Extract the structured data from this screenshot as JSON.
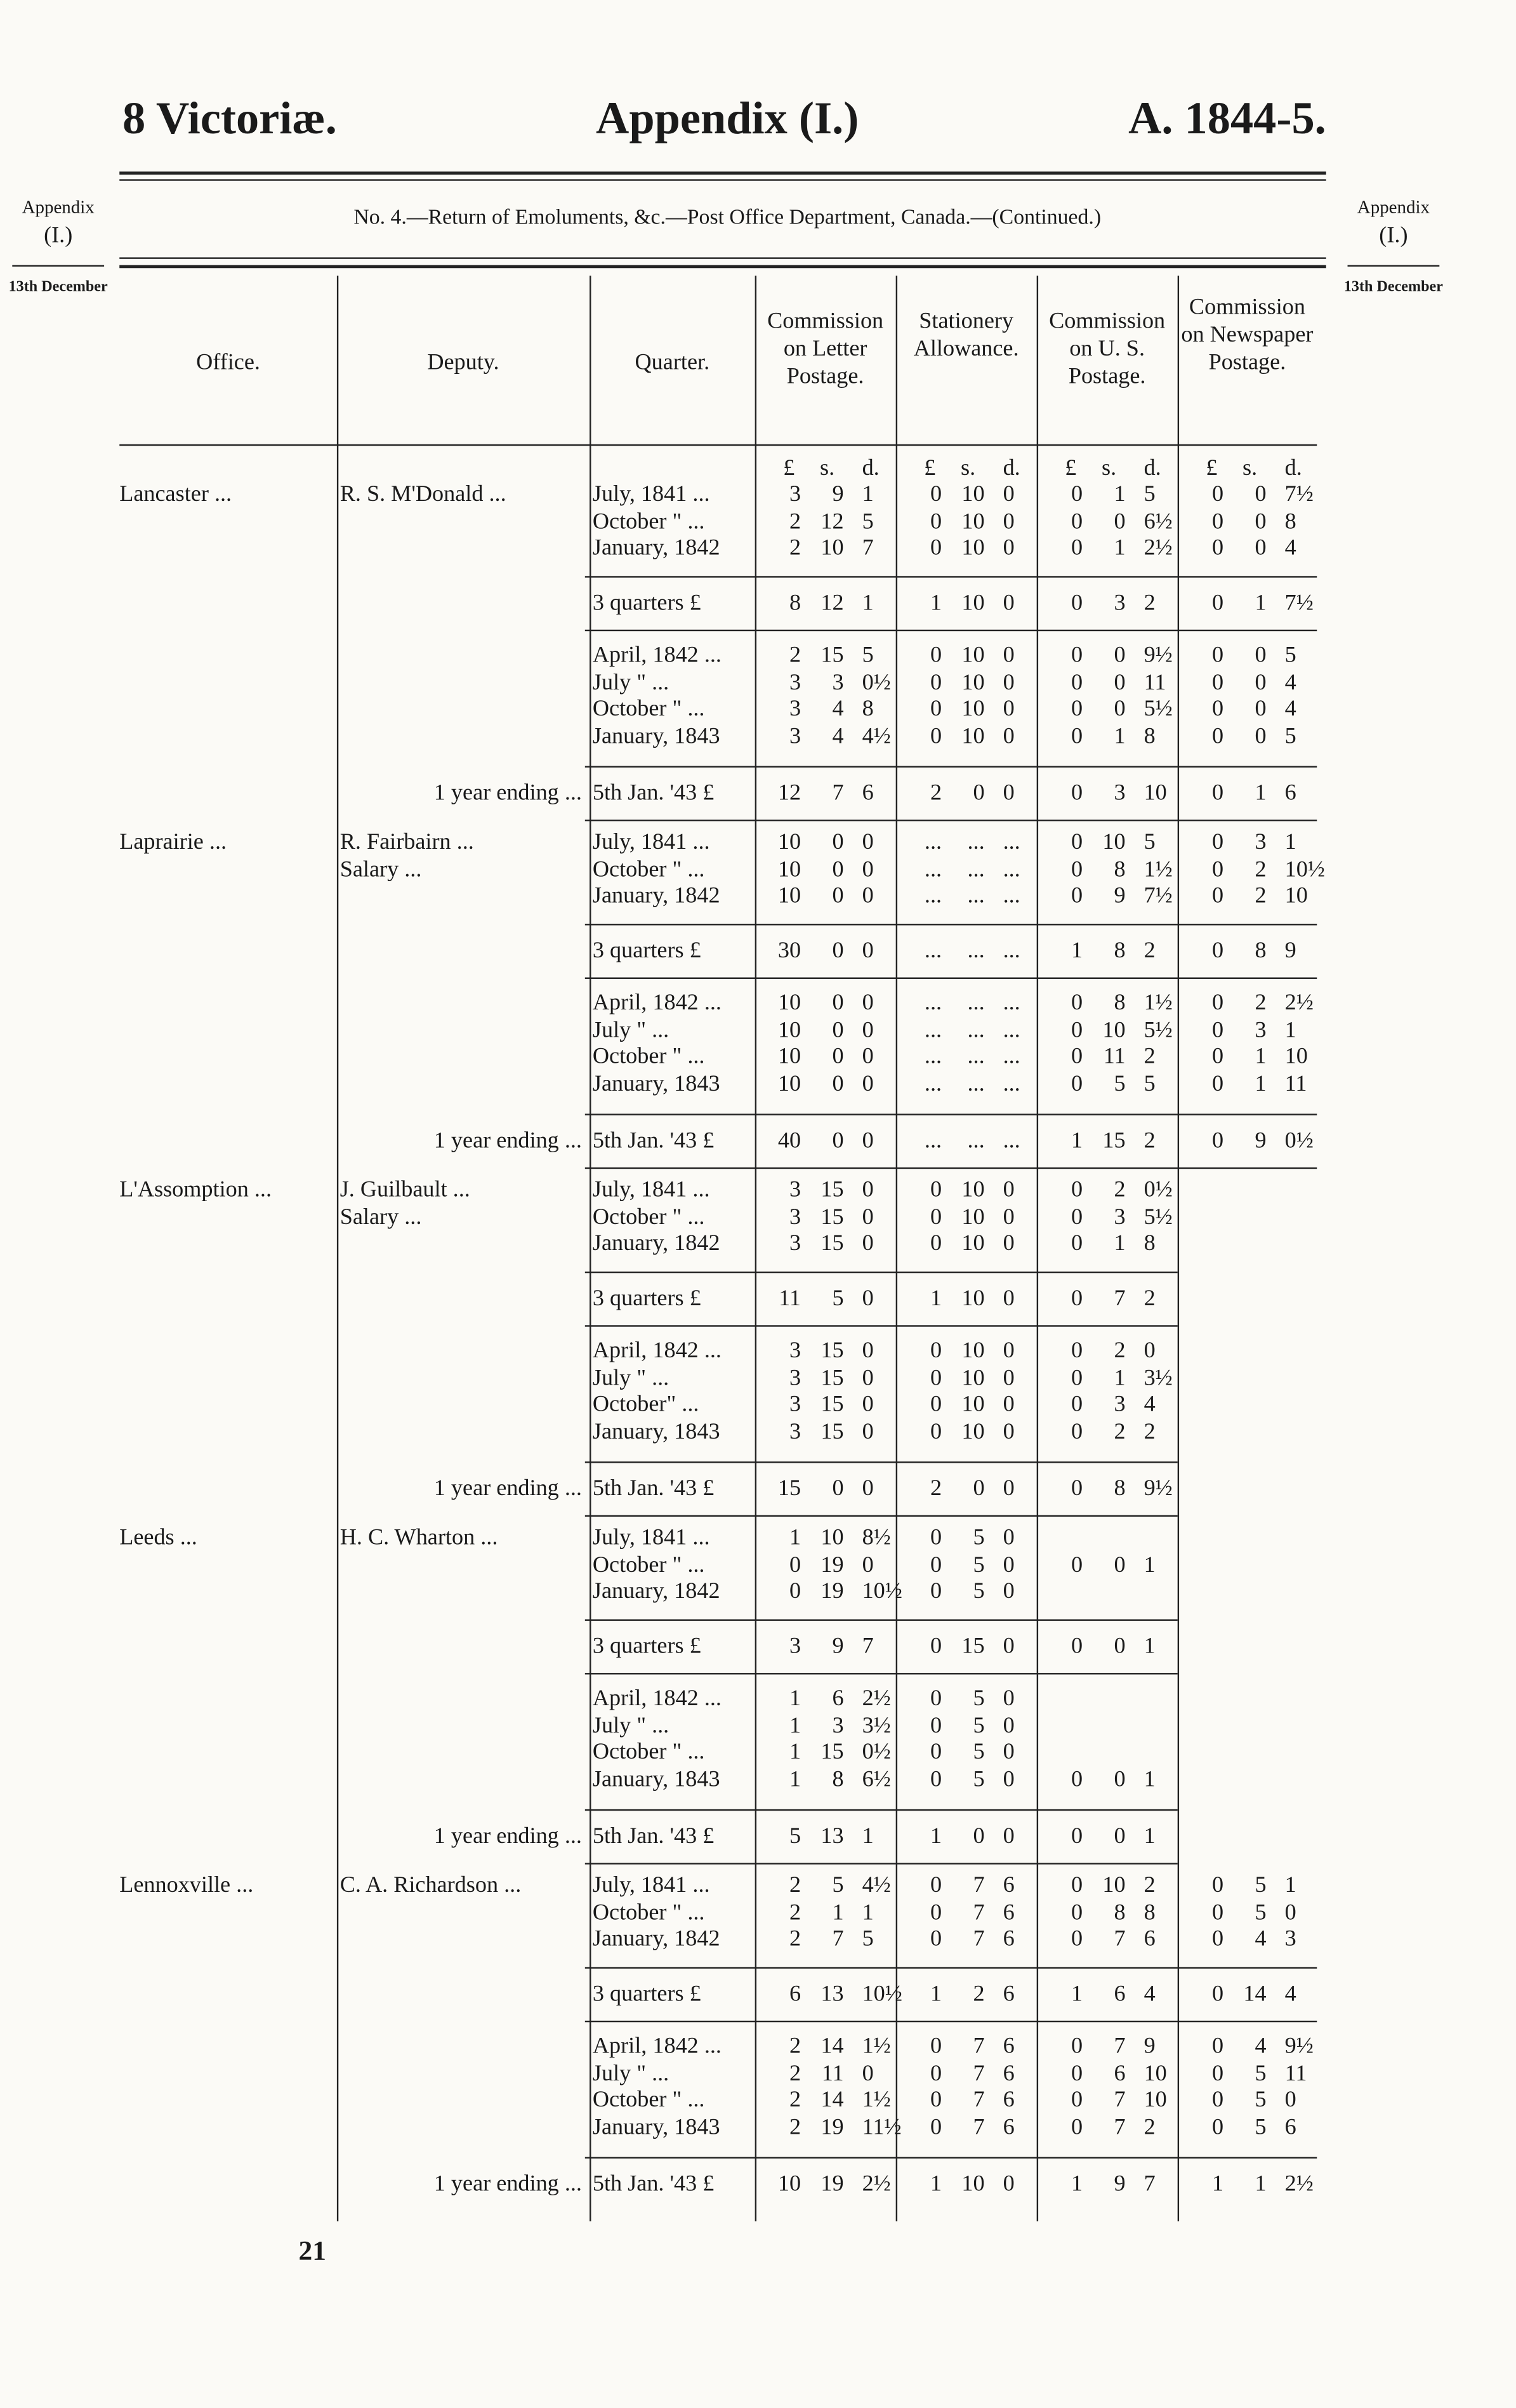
{
  "header": {
    "left": "8 Victoriæ.",
    "center": "Appendix (I.)",
    "right": "A. 1844-5."
  },
  "subtitle": "No. 4.—Return of Emoluments, &c.—Post Office Department, Canada.—(Continued.)",
  "margin": {
    "label": "Appendix",
    "number": "(I.)",
    "date": "13th December"
  },
  "columns": [
    "Office.",
    "Deputy.",
    "Quarter.",
    "Commission on Letter Postage.",
    "Stationery Allowance.",
    "Commission on U. S. Postage.",
    "Commission on Newspaper Postage."
  ],
  "units": [
    "£",
    "s.",
    "d."
  ],
  "offices": [
    {
      "office": "Lancaster ...",
      "deputy": [
        "R. S. M'Donald ..."
      ],
      "quarters_1": [
        [
          "July, 1841 ...",
          "3",
          "9",
          "1",
          "0",
          "10",
          "0",
          "0",
          "1",
          "5",
          "0",
          "0",
          "7½"
        ],
        [
          "October \" ...",
          "2",
          "12",
          "5",
          "0",
          "10",
          "0",
          "0",
          "0",
          "6½",
          "0",
          "0",
          "8"
        ],
        [
          "January, 1842",
          "2",
          "10",
          "7",
          "0",
          "10",
          "0",
          "0",
          "1",
          "2½",
          "0",
          "0",
          "4"
        ]
      ],
      "total_1": [
        "3 quarters £",
        "8",
        "12",
        "1",
        "1",
        "10",
        "0",
        "0",
        "3",
        "2",
        "0",
        "1",
        "7½"
      ],
      "quarters_2": [
        [
          "April, 1842 ...",
          "2",
          "15",
          "5",
          "0",
          "10",
          "0",
          "0",
          "0",
          "9½",
          "0",
          "0",
          "5"
        ],
        [
          "July \" ...",
          "3",
          "3",
          "0½",
          "0",
          "10",
          "0",
          "0",
          "0",
          "11",
          "0",
          "0",
          "4"
        ],
        [
          "October \" ...",
          "3",
          "4",
          "8",
          "0",
          "10",
          "0",
          "0",
          "0",
          "5½",
          "0",
          "0",
          "4"
        ],
        [
          "January, 1843",
          "3",
          "4",
          "4½",
          "0",
          "10",
          "0",
          "0",
          "1",
          "8",
          "0",
          "0",
          "5"
        ]
      ],
      "ending": "1 year ending ...",
      "total_2": [
        "5th Jan. '43 £",
        "12",
        "7",
        "6",
        "2",
        "0",
        "0",
        "0",
        "3",
        "10",
        "0",
        "1",
        "6"
      ]
    },
    {
      "office": "Laprairie ...",
      "deputy": [
        "R. Fairbairn ...",
        "Salary ..."
      ],
      "quarters_1": [
        [
          "July, 1841 ...",
          "10",
          "0",
          "0",
          "...",
          "...",
          "...",
          "0",
          "10",
          "5",
          "0",
          "3",
          "1"
        ],
        [
          "October \" ...",
          "10",
          "0",
          "0",
          "...",
          "...",
          "...",
          "0",
          "8",
          "1½",
          "0",
          "2",
          "10½"
        ],
        [
          "January, 1842",
          "10",
          "0",
          "0",
          "...",
          "...",
          "...",
          "0",
          "9",
          "7½",
          "0",
          "2",
          "10"
        ]
      ],
      "total_1": [
        "3 quarters £",
        "30",
        "0",
        "0",
        "...",
        "...",
        "...",
        "1",
        "8",
        "2",
        "0",
        "8",
        "9"
      ],
      "quarters_2": [
        [
          "April, 1842 ...",
          "10",
          "0",
          "0",
          "...",
          "...",
          "...",
          "0",
          "8",
          "1½",
          "0",
          "2",
          "2½"
        ],
        [
          "July \" ...",
          "10",
          "0",
          "0",
          "...",
          "...",
          "...",
          "0",
          "10",
          "5½",
          "0",
          "3",
          "1"
        ],
        [
          "October \" ...",
          "10",
          "0",
          "0",
          "...",
          "...",
          "...",
          "0",
          "11",
          "2",
          "0",
          "1",
          "10"
        ],
        [
          "January, 1843",
          "10",
          "0",
          "0",
          "...",
          "...",
          "...",
          "0",
          "5",
          "5",
          "0",
          "1",
          "11"
        ]
      ],
      "ending": "1 year ending ...",
      "total_2": [
        "5th Jan. '43 £",
        "40",
        "0",
        "0",
        "...",
        "...",
        "...",
        "1",
        "15",
        "2",
        "0",
        "9",
        "0½"
      ]
    },
    {
      "office": "L'Assomption ...",
      "deputy": [
        "J. Guilbault ...",
        "Salary ..."
      ],
      "quarters_1": [
        [
          "July, 1841 ...",
          "3",
          "15",
          "0",
          "0",
          "10",
          "0",
          "0",
          "2",
          "0½",
          null,
          null,
          null
        ],
        [
          "October \" ...",
          "3",
          "15",
          "0",
          "0",
          "10",
          "0",
          "0",
          "3",
          "5½",
          null,
          null,
          null
        ],
        [
          "January, 1842",
          "3",
          "15",
          "0",
          "0",
          "10",
          "0",
          "0",
          "1",
          "8",
          null,
          null,
          null
        ]
      ],
      "total_1": [
        "3 quarters £",
        "11",
        "5",
        "0",
        "1",
        "10",
        "0",
        "0",
        "7",
        "2",
        null,
        null,
        null
      ],
      "quarters_2": [
        [
          "April, 1842 ...",
          "3",
          "15",
          "0",
          "0",
          "10",
          "0",
          "0",
          "2",
          "0",
          null,
          null,
          null
        ],
        [
          "July \" ...",
          "3",
          "15",
          "0",
          "0",
          "10",
          "0",
          "0",
          "1",
          "3½",
          null,
          null,
          null
        ],
        [
          "October\" ...",
          "3",
          "15",
          "0",
          "0",
          "10",
          "0",
          "0",
          "3",
          "4",
          null,
          null,
          null
        ],
        [
          "January, 1843",
          "3",
          "15",
          "0",
          "0",
          "10",
          "0",
          "0",
          "2",
          "2",
          null,
          null,
          null
        ]
      ],
      "ending": "1 year ending ...",
      "total_2": [
        "5th Jan. '43 £",
        "15",
        "0",
        "0",
        "2",
        "0",
        "0",
        "0",
        "8",
        "9½",
        null,
        null,
        null
      ]
    },
    {
      "office": "Leeds ...",
      "deputy": [
        "H. C. Wharton ..."
      ],
      "quarters_1": [
        [
          "July, 1841 ...",
          "1",
          "10",
          "8½",
          "0",
          "5",
          "0",
          null,
          null,
          null,
          null,
          null,
          null
        ],
        [
          "October \" ...",
          "0",
          "19",
          "0",
          "0",
          "5",
          "0",
          "0",
          "0",
          "1",
          null,
          null,
          null
        ],
        [
          "January, 1842",
          "0",
          "19",
          "10½",
          "0",
          "5",
          "0",
          null,
          null,
          null,
          null,
          null,
          null
        ]
      ],
      "total_1": [
        "3 quarters £",
        "3",
        "9",
        "7",
        "0",
        "15",
        "0",
        "0",
        "0",
        "1",
        null,
        null,
        null
      ],
      "quarters_2": [
        [
          "April, 1842 ...",
          "1",
          "6",
          "2½",
          "0",
          "5",
          "0",
          null,
          null,
          null,
          null,
          null,
          null
        ],
        [
          "July \" ...",
          "1",
          "3",
          "3½",
          "0",
          "5",
          "0",
          null,
          null,
          null,
          null,
          null,
          null
        ],
        [
          "October \" ...",
          "1",
          "15",
          "0½",
          "0",
          "5",
          "0",
          null,
          null,
          null,
          null,
          null,
          null
        ],
        [
          "January, 1843",
          "1",
          "8",
          "6½",
          "0",
          "5",
          "0",
          "0",
          "0",
          "1",
          null,
          null,
          null
        ]
      ],
      "ending": "1 year ending ...",
      "total_2": [
        "5th Jan. '43 £",
        "5",
        "13",
        "1",
        "1",
        "0",
        "0",
        "0",
        "0",
        "1",
        null,
        null,
        null
      ]
    },
    {
      "office": "Lennoxville ...",
      "deputy": [
        "C. A. Richardson ..."
      ],
      "quarters_1": [
        [
          "July, 1841 ...",
          "2",
          "5",
          "4½",
          "0",
          "7",
          "6",
          "0",
          "10",
          "2",
          "0",
          "5",
          "1"
        ],
        [
          "October \" ...",
          "2",
          "1",
          "1",
          "0",
          "7",
          "6",
          "0",
          "8",
          "8",
          "0",
          "5",
          "0"
        ],
        [
          "January, 1842",
          "2",
          "7",
          "5",
          "0",
          "7",
          "6",
          "0",
          "7",
          "6",
          "0",
          "4",
          "3"
        ]
      ],
      "total_1": [
        "3 quarters £",
        "6",
        "13",
        "10½",
        "1",
        "2",
        "6",
        "1",
        "6",
        "4",
        "0",
        "14",
        "4"
      ],
      "quarters_2": [
        [
          "April, 1842 ...",
          "2",
          "14",
          "1½",
          "0",
          "7",
          "6",
          "0",
          "7",
          "9",
          "0",
          "4",
          "9½"
        ],
        [
          "July \" ...",
          "2",
          "11",
          "0",
          "0",
          "7",
          "6",
          "0",
          "6",
          "10",
          "0",
          "5",
          "11"
        ],
        [
          "October \" ...",
          "2",
          "14",
          "1½",
          "0",
          "7",
          "6",
          "0",
          "7",
          "10",
          "0",
          "5",
          "0"
        ],
        [
          "January, 1843",
          "2",
          "19",
          "11½",
          "0",
          "7",
          "6",
          "0",
          "7",
          "2",
          "0",
          "5",
          "6"
        ]
      ],
      "ending": "1 year ending ...",
      "total_2": [
        "5th Jan. '43 £",
        "10",
        "19",
        "2½",
        "1",
        "10",
        "0",
        "1",
        "9",
        "7",
        "1",
        "1",
        "2½"
      ]
    }
  ],
  "page_number": "21"
}
